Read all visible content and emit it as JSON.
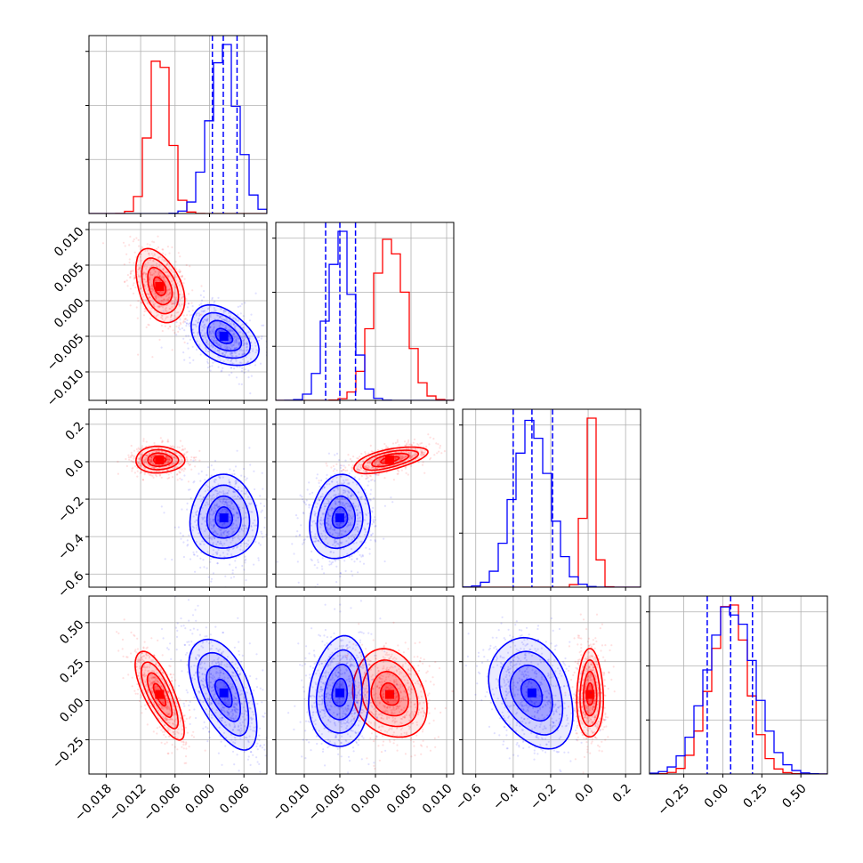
{
  "chart_data": {
    "type": "corner",
    "title": "",
    "parameters": [
      {
        "index": 0,
        "range": [
          -0.021,
          0.01
        ],
        "ticks": [
          -0.018,
          -0.012,
          -0.006,
          0.0,
          0.006
        ],
        "tick_labels": [
          "−0.018",
          "−0.012",
          "−0.006",
          "0.000",
          "0.006"
        ]
      },
      {
        "index": 1,
        "range": [
          -0.014,
          0.011
        ],
        "ticks": [
          -0.01,
          -0.005,
          0.0,
          0.005,
          0.01
        ],
        "tick_labels": [
          "−0.010",
          "−0.005",
          "0.000",
          "0.005",
          "0.010"
        ]
      },
      {
        "index": 2,
        "range": [
          -0.67,
          0.28
        ],
        "ticks": [
          -0.6,
          -0.4,
          -0.2,
          0.0,
          0.2
        ],
        "tick_labels": [
          "−0.6",
          "−0.4",
          "−0.2",
          "0.0",
          "0.2"
        ]
      },
      {
        "index": 3,
        "range": [
          -0.47,
          0.67
        ],
        "ticks": [
          -0.25,
          0.0,
          0.25,
          0.5
        ],
        "tick_labels": [
          "−0.25",
          "0.00",
          "0.25",
          "0.50"
        ]
      }
    ],
    "series": [
      {
        "color": "#ff0000",
        "means": [
          -0.0087,
          0.002,
          0.01,
          0.04
        ],
        "sigmas": [
          0.0018,
          0.0022,
          0.03,
          0.12
        ],
        "correlations": {
          "0-1": -0.4,
          "0-2": 0.0,
          "0-3": -0.75,
          "1-2": 0.6,
          "1-3": -0.2,
          "2-3": 0.0
        }
      },
      {
        "color": "#0000ff",
        "means": [
          0.0025,
          -0.005,
          -0.3,
          0.05
        ],
        "sigmas": [
          0.0025,
          0.0018,
          0.095,
          0.15
        ],
        "correlations": {
          "0-1": -0.4,
          "0-2": 0.0,
          "0-3": -0.55,
          "1-2": 0.1,
          "1-3": 0.1,
          "2-3": -0.3
        }
      }
    ],
    "quantile_lines": {
      "color": "#0000ff",
      "style": "dashed",
      "values": [
        [
          0.0005,
          0.0024,
          0.0048
        ],
        [
          -0.007,
          -0.005,
          -0.0028
        ],
        [
          -0.4,
          -0.3,
          -0.19
        ],
        [
          -0.1,
          0.05,
          0.19
        ]
      ]
    },
    "contour_levels_sigma": [
      0.5,
      1.0,
      1.5,
      2.0
    ],
    "grid": true,
    "legend": "none"
  }
}
